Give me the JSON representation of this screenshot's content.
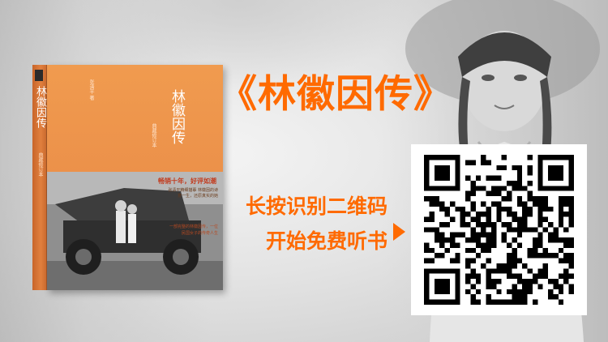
{
  "headline": "《林徽因传》",
  "cta": {
    "line1": "长按识别二维码",
    "line2": "开始免费听书"
  },
  "book": {
    "spine_title": "林徽因传",
    "spine_subtitle": "典藏修订本",
    "author": "张清平 著",
    "cover_title": "林徽因传",
    "edition": "典藏修订本",
    "slogan": "畅销十年，好评如潮",
    "blurb": "张清平精细描摹 林徽因的诗意一生，还原真实的她",
    "blurb2": "一部完整的林徽因传，一位民国女子的传奇人生"
  },
  "icons": {
    "arrow": "triangle-right-icon",
    "qr": "qr-code-icon",
    "publisher": "publisher-logo-icon"
  },
  "colors": {
    "accent": "#ff6a00",
    "cover": "#ee9a50"
  }
}
